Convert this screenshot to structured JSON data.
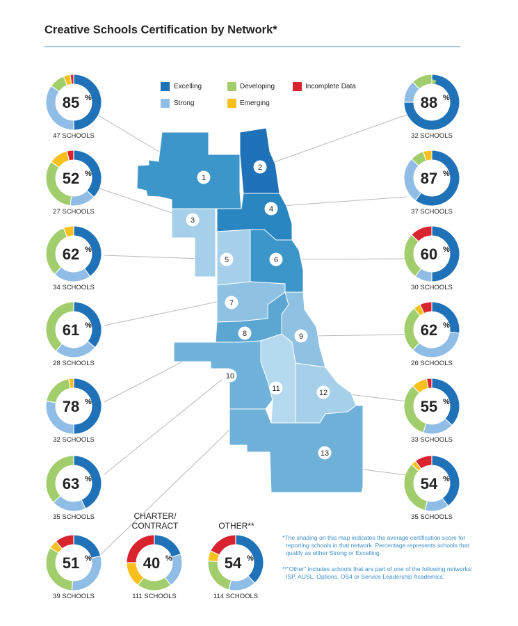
{
  "title": "Creative Schools Certification by Network*",
  "legend": [
    {
      "label": "Excelling",
      "color": "#1f72b8"
    },
    {
      "label": "Developing",
      "color": "#a2cd6c"
    },
    {
      "label": "Incomplete Data",
      "color": "#d9232e"
    },
    {
      "label": "Strong",
      "color": "#8fbde6"
    },
    {
      "label": "Emerging",
      "color": "#f8c01d"
    }
  ],
  "map_labels": [
    "1",
    "2",
    "3",
    "4",
    "5",
    "6",
    "7",
    "8",
    "9",
    "10",
    "11",
    "12",
    "13"
  ],
  "groups": {
    "charter": {
      "title_line1": "CHARTER/",
      "title_line2": "CONTRACT"
    },
    "other": {
      "title": "OTHER**"
    }
  },
  "notes": {
    "note1_line1": "*The shading on this map indicates the average certification score for",
    "note1_line2": "reporting schools in that network. Percentage represents schools that",
    "note1_line3": "qualify as either Strong or Excelling.",
    "note2_line1": "**\"Other\" includes schools that are part of one of the following networks:",
    "note2_line2": "ISP, AUSL, Options, OS4 or Service Leadership Academics."
  },
  "chart_data": {
    "type": "pie",
    "title": "Creative Schools Certification by Network*",
    "categories": [
      "Excelling",
      "Strong",
      "Developing",
      "Emerging",
      "Incomplete Data"
    ],
    "donuts": [
      {
        "network": "1",
        "percent": "85%",
        "schools": "47 SCHOOLS",
        "values": [
          50,
          35,
          9,
          4,
          2
        ]
      },
      {
        "network": "2",
        "percent": "88%",
        "schools": "32 SCHOOLS",
        "values": [
          75,
          13,
          12,
          0,
          0
        ]
      },
      {
        "network": "3",
        "percent": "52%",
        "schools": "27 SCHOOLS",
        "values": [
          37,
          15,
          33,
          11,
          4
        ]
      },
      {
        "network": "4",
        "percent": "87%",
        "schools": "37 SCHOOLS",
        "values": [
          60,
          27,
          8,
          5,
          0
        ]
      },
      {
        "network": "5",
        "percent": "62%",
        "schools": "34 SCHOOLS",
        "values": [
          40,
          22,
          32,
          6,
          0
        ]
      },
      {
        "network": "6",
        "percent": "60%",
        "schools": "30 SCHOOLS",
        "values": [
          50,
          10,
          27,
          0,
          13
        ]
      },
      {
        "network": "7",
        "percent": "61%",
        "schools": "28 SCHOOLS",
        "values": [
          36,
          25,
          39,
          0,
          0
        ]
      },
      {
        "network": "8",
        "percent": "62%",
        "schools": "26 SCHOOLS",
        "values": [
          27,
          35,
          27,
          4,
          7
        ]
      },
      {
        "network": "9",
        "percent": "78%",
        "schools": "32 SCHOOLS",
        "values": [
          50,
          28,
          19,
          3,
          0
        ]
      },
      {
        "network": "12",
        "percent": "55%",
        "schools": "33 SCHOOLS",
        "values": [
          37,
          18,
          33,
          9,
          3
        ]
      },
      {
        "network": "10",
        "percent": "63%",
        "schools": "35 SCHOOLS",
        "values": [
          43,
          20,
          37,
          0,
          0
        ]
      },
      {
        "network": "13",
        "percent": "54%",
        "schools": "35 SCHOOLS",
        "values": [
          40,
          14,
          33,
          3,
          10
        ]
      },
      {
        "network": "11",
        "percent": "51%",
        "schools": "39 SCHOOLS",
        "values": [
          21,
          30,
          33,
          5,
          11
        ]
      },
      {
        "network": "charter",
        "percent": "40%",
        "schools": "111 SCHOOLS",
        "values": [
          20,
          20,
          20,
          15,
          25
        ]
      },
      {
        "network": "other",
        "percent": "54%",
        "schools": "114 SCHOOLS",
        "values": [
          38,
          16,
          22,
          6,
          18
        ]
      }
    ]
  }
}
